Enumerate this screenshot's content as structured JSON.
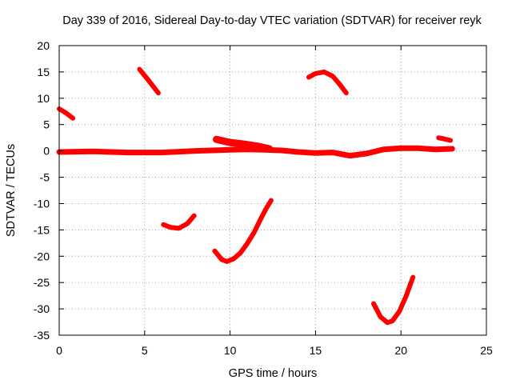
{
  "chart_data": {
    "type": "line",
    "title": "Day 339 of 2016, Sidereal Day-to-day VTEC variation (SDTVAR) for receiver reyk",
    "xlabel": "GPS time / hours",
    "ylabel": "SDTVAR / TECUs",
    "xlim": [
      0,
      25
    ],
    "ylim": [
      -35,
      20
    ],
    "x_ticks": [
      "0",
      "5",
      "10",
      "15",
      "20",
      "25"
    ],
    "y_ticks": [
      "20",
      "15",
      "10",
      "5",
      "0",
      "-5",
      "-10",
      "-15",
      "-20",
      "-25",
      "-30",
      "-35"
    ],
    "grid": true,
    "color": "#ff0000",
    "series": [
      {
        "name": "baseline",
        "width": 7,
        "x": [
          0,
          2,
          4,
          6,
          8,
          10,
          11,
          12,
          13,
          14,
          15,
          16,
          17,
          18,
          19,
          20,
          21,
          22,
          23
        ],
        "y": [
          -0.2,
          -0.1,
          -0.3,
          -0.3,
          0,
          0.2,
          0.3,
          0.2,
          0.1,
          -0.2,
          -0.4,
          -0.3,
          -0.9,
          -0.5,
          0.3,
          0.5,
          0.5,
          0.3,
          0.4
        ]
      },
      {
        "name": "hump",
        "width": 9,
        "x": [
          9.2,
          10,
          10.8,
          11.6,
          12.3
        ],
        "y": [
          2.2,
          1.6,
          1.3,
          0.9,
          0.4
        ]
      },
      {
        "name": "arc-early",
        "width": 6,
        "x": [
          0,
          0.4,
          0.8
        ],
        "y": [
          8,
          7.2,
          6.2
        ]
      },
      {
        "name": "arc-5h",
        "width": 6,
        "x": [
          4.7,
          5.2,
          5.8
        ],
        "y": [
          15.5,
          13.5,
          11
        ]
      },
      {
        "name": "arc-15h",
        "width": 6,
        "x": [
          14.6,
          15,
          15.5,
          16,
          16.4,
          16.8
        ],
        "y": [
          14,
          14.7,
          15,
          14.2,
          12.7,
          11
        ]
      },
      {
        "name": "arc-22h",
        "width": 6,
        "x": [
          22.2,
          22.5,
          22.9
        ],
        "y": [
          2.5,
          2.3,
          2
        ]
      },
      {
        "name": "arc-7h",
        "width": 6,
        "x": [
          6.1,
          6.5,
          7,
          7.5,
          7.9
        ],
        "y": [
          -14,
          -14.5,
          -14.7,
          -13.8,
          -12.3
        ]
      },
      {
        "name": "arc-10h",
        "width": 6,
        "x": [
          9.1,
          9.5,
          9.8,
          10.2,
          10.6,
          11,
          11.4,
          11.8,
          12.1,
          12.4
        ],
        "y": [
          -19,
          -20.6,
          -21,
          -20.5,
          -19.4,
          -17.6,
          -15.5,
          -12.9,
          -11,
          -9.4
        ]
      },
      {
        "name": "arc-19h",
        "width": 6,
        "x": [
          18.4,
          18.8,
          19.2,
          19.5,
          19.9,
          20.3,
          20.7
        ],
        "y": [
          -29,
          -31.5,
          -32.6,
          -32.3,
          -30.5,
          -27.6,
          -24
        ]
      }
    ]
  }
}
